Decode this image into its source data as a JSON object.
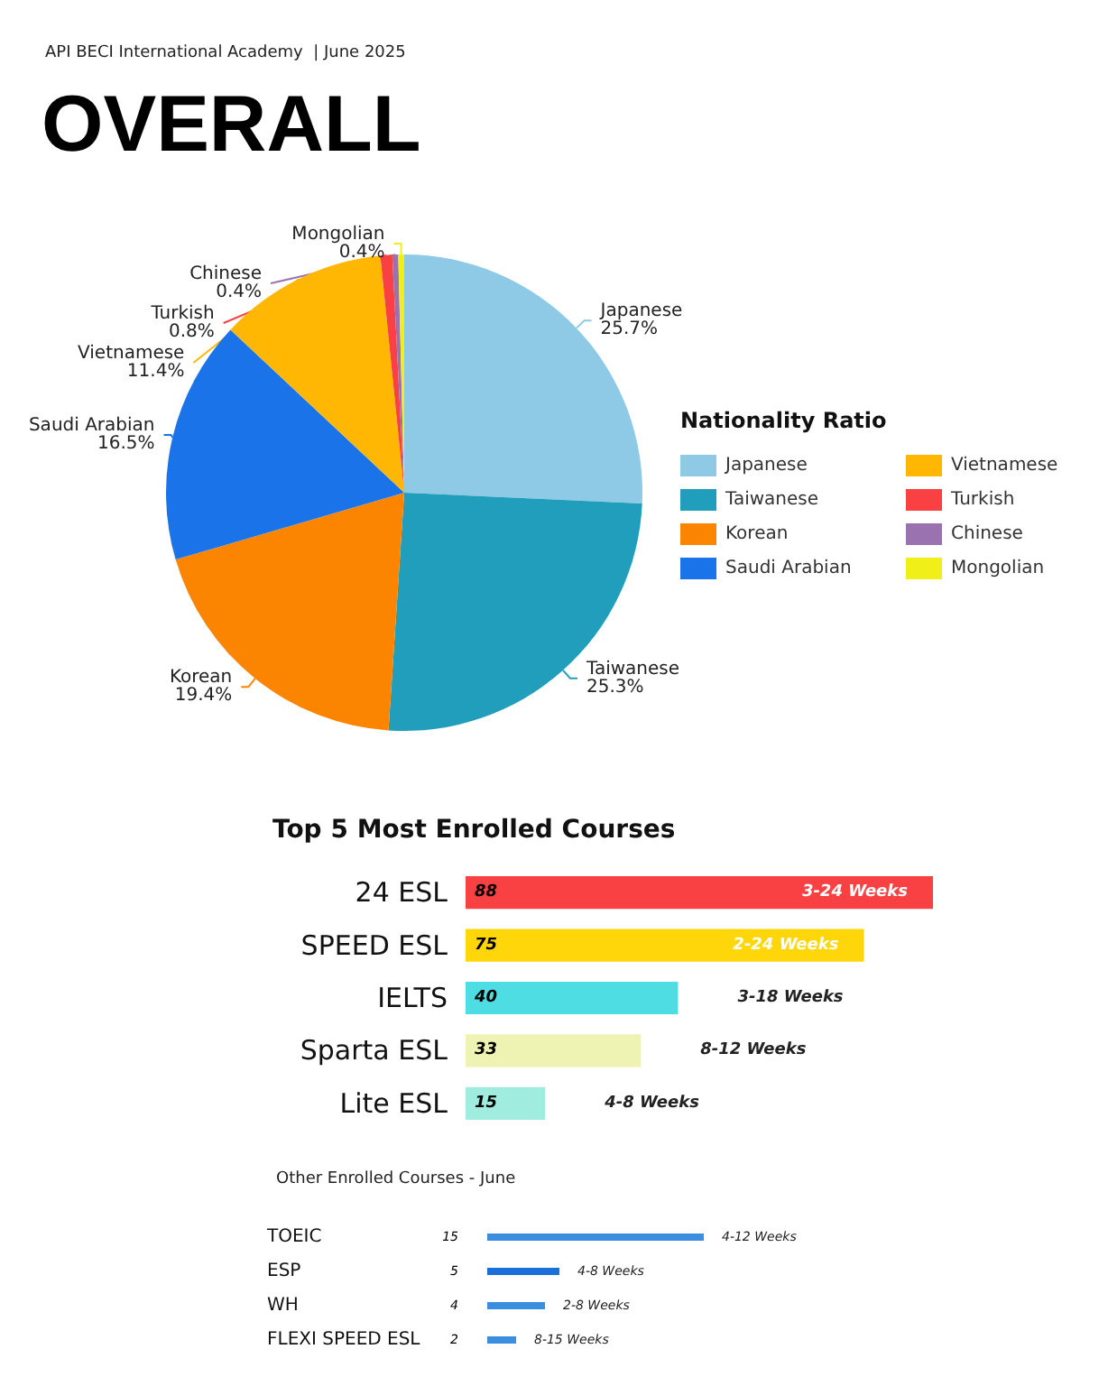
{
  "chart_data": [
    {
      "type": "pie",
      "title": "OVERALL",
      "subtitle": "API BECI International Academy  | June 2025",
      "legend_title": "Nationality Ratio",
      "legend": "right",
      "categories": [
        "Japanese",
        "Taiwanese",
        "Korean",
        "Saudi Arabian",
        "Vietnamese",
        "Turkish",
        "Chinese",
        "Mongolian"
      ],
      "values": [
        25.7,
        25.3,
        19.4,
        16.5,
        11.4,
        0.8,
        0.4,
        0.4
      ],
      "value_labels": [
        "25.7%",
        "25.3%",
        "19.4%",
        "16.5%",
        "11.4%",
        "0.8%",
        "0.4%",
        "0.4%"
      ],
      "colors": [
        "#8ecae6",
        "#219ebc",
        "#fb8500",
        "#1a73e8",
        "#ffb703",
        "#f94144",
        "#9b72b0",
        "#f0f018"
      ]
    },
    {
      "type": "bar",
      "orientation": "horizontal",
      "title": "Top 5 Most Enrolled Courses",
      "data_labels": true,
      "categories": [
        "24 ESL",
        "SPEED ESL",
        "IELTS",
        "Sparta ESL",
        "Lite ESL"
      ],
      "values": [
        88,
        75,
        40,
        33,
        15
      ],
      "colors": [
        "#f94144",
        "#ffd60a",
        "#4ddde3",
        "#eef3b3",
        "#a0ede0"
      ],
      "annotations": [
        "3-24 Weeks",
        "2-24 Weeks",
        "3-18 Weeks",
        "8-12 Weeks",
        "4-8 Weeks"
      ]
    },
    {
      "type": "bar",
      "orientation": "horizontal",
      "title": "Other Enrolled Courses - June",
      "data_labels": true,
      "categories": [
        "TOEIC",
        "ESP",
        "WH",
        "FLEXI SPEED ESL"
      ],
      "values": [
        15,
        5,
        4,
        2
      ],
      "colors": [
        "#3b8de0",
        "#1a6fd8",
        "#3b8de0",
        "#3b8de0"
      ],
      "annotations": [
        "4-12 Weeks",
        "4-8 Weeks",
        "2-8 Weeks",
        "8-15 Weeks"
      ]
    }
  ]
}
